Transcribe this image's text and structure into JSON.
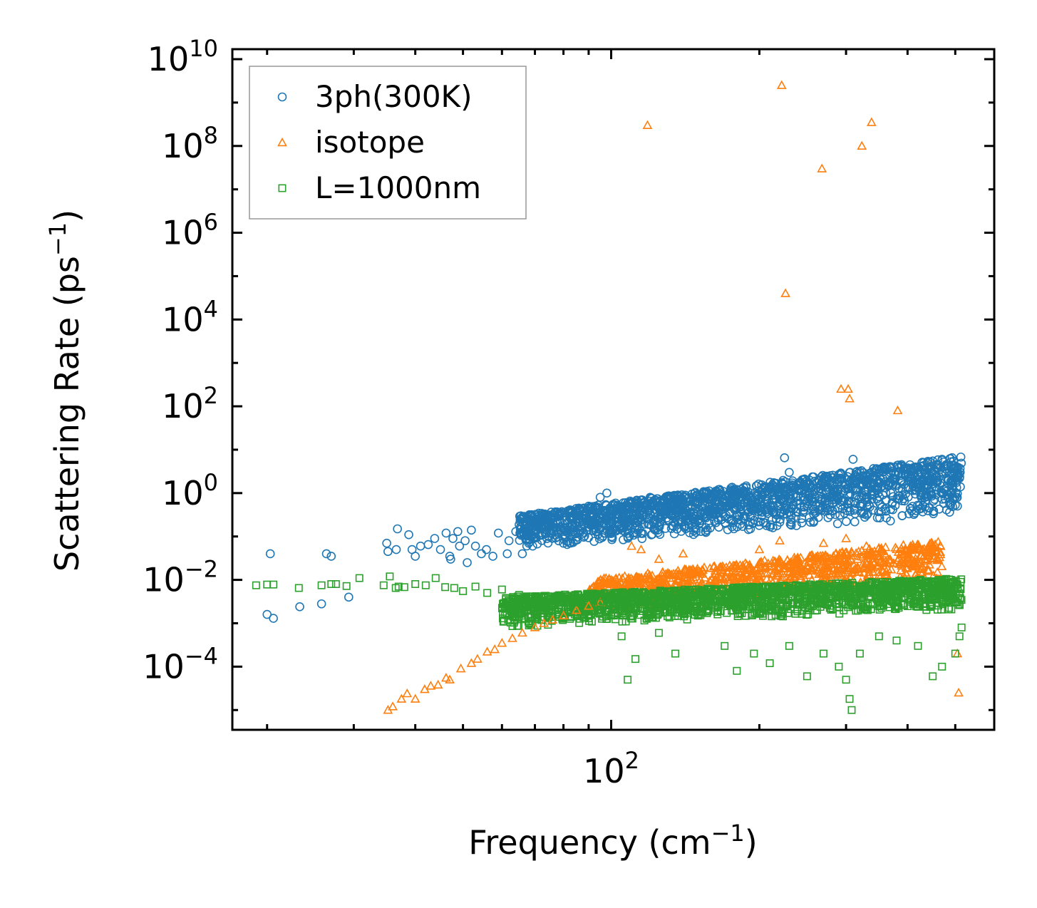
{
  "chart_data": {
    "type": "scatter",
    "title": "",
    "xlabel": "Frequency (cm",
    "xlabel_sup": "−1",
    "xlabel_end": ")",
    "ylabel": "Scattering Rate (ps",
    "ylabel_sup": "−1",
    "ylabel_end": ")",
    "xscale": "log",
    "yscale": "log",
    "xlim": [
      17,
      600
    ],
    "ylim": [
      3.5e-06,
      17000000000
    ],
    "x_ticks": [
      {
        "base": "10",
        "exp": "2",
        "value": 100
      }
    ],
    "y_ticks": [
      {
        "base": "10",
        "exp": "−4",
        "value": 0.0001
      },
      {
        "base": "10",
        "exp": "−2",
        "value": 0.01
      },
      {
        "base": "10",
        "exp": "0",
        "value": 1
      },
      {
        "base": "10",
        "exp": "2",
        "value": 100
      },
      {
        "base": "10",
        "exp": "4",
        "value": 10000
      },
      {
        "base": "10",
        "exp": "6",
        "value": 1000000
      },
      {
        "base": "10",
        "exp": "8",
        "value": 100000000
      },
      {
        "base": "10",
        "exp": "10",
        "value": 10000000000
      }
    ],
    "legend_position": "top-left",
    "series": [
      {
        "name": "3ph(300K)",
        "color": "#1f77b4",
        "marker": "circle",
        "points": [
          [
            20.3,
            0.04
          ],
          [
            20.0,
            0.0016
          ],
          [
            20.6,
            0.0013
          ],
          [
            23.3,
            0.0024
          ],
          [
            25.8,
            0.0028
          ],
          [
            26.4,
            0.04
          ],
          [
            27.0,
            0.035
          ],
          [
            29.3,
            0.004
          ],
          [
            35.0,
            0.07
          ],
          [
            35.2,
            0.045
          ],
          [
            36.8,
            0.15
          ],
          [
            36.6,
            0.05
          ],
          [
            38.8,
            0.11
          ],
          [
            39.4,
            0.05
          ],
          [
            40.0,
            0.035
          ],
          [
            41.0,
            0.06
          ],
          [
            42.5,
            0.065
          ],
          [
            43.8,
            0.09
          ],
          [
            45.0,
            0.05
          ],
          [
            46.2,
            0.12
          ],
          [
            47.0,
            0.035
          ],
          [
            47.2,
            0.03
          ],
          [
            47.7,
            0.09
          ],
          [
            48.8,
            0.13
          ],
          [
            49.2,
            0.06
          ],
          [
            50.5,
            0.08
          ],
          [
            51.0,
            0.025
          ],
          [
            52.0,
            0.14
          ],
          [
            53.0,
            0.06
          ],
          [
            54.5,
            0.04
          ],
          [
            55.8,
            0.05
          ],
          [
            57.5,
            0.035
          ],
          [
            59.0,
            0.12
          ],
          [
            61.5,
            0.04
          ],
          [
            62.0,
            0.08
          ],
          [
            64.0,
            0.13
          ],
          [
            66.0,
            0.04
          ],
          [
            68.0,
            0.07
          ],
          [
            70.0,
            0.1
          ],
          [
            72.0,
            0.15
          ],
          [
            75.0,
            0.12
          ],
          [
            78.0,
            0.2
          ],
          [
            80.0,
            0.07
          ],
          [
            83.0,
            0.3
          ],
          [
            86.0,
            0.45
          ],
          [
            90.0,
            0.5
          ],
          [
            95.0,
            0.8
          ],
          [
            98.0,
            1.0
          ],
          [
            105.0,
            0.45
          ],
          [
            112.0,
            0.6
          ],
          [
            120.0,
            0.8
          ],
          [
            130.0,
            0.5
          ],
          [
            140.0,
            0.35
          ],
          [
            150.0,
            0.55
          ],
          [
            160.0,
            0.7
          ],
          [
            175.0,
            0.6
          ],
          [
            185.0,
            0.8
          ],
          [
            200.0,
            0.4
          ],
          [
            215.0,
            0.9
          ],
          [
            225.0,
            6.5
          ],
          [
            230.0,
            3.0
          ],
          [
            245.0,
            2.0
          ],
          [
            260.0,
            1.2
          ],
          [
            280.0,
            0.8
          ],
          [
            300.0,
            1.5
          ],
          [
            310.0,
            6.0
          ],
          [
            330.0,
            1.6
          ],
          [
            350.0,
            3.5
          ],
          [
            370.0,
            1.0
          ],
          [
            390.0,
            0.3
          ],
          [
            410.0,
            2.5
          ],
          [
            430.0,
            3.5
          ],
          [
            450.0,
            5.5
          ],
          [
            470.0,
            6.0
          ],
          [
            490.0,
            4.0
          ],
          [
            510.0,
            2.2
          ]
        ]
      },
      {
        "name": "isotope",
        "color": "#ff7f0e",
        "marker": "triangle",
        "points": [
          [
            35.2,
            1e-05
          ],
          [
            36.0,
            1.2e-05
          ],
          [
            37.5,
            1.8e-05
          ],
          [
            38.5,
            2.4e-05
          ],
          [
            40.0,
            1.8e-05
          ],
          [
            41.8,
            3e-05
          ],
          [
            43.0,
            3.6e-05
          ],
          [
            44.5,
            3.8e-05
          ],
          [
            46.2,
            5.5e-05
          ],
          [
            47.0,
            5e-05
          ],
          [
            49.5,
            9e-05
          ],
          [
            52.0,
            0.00012
          ],
          [
            53.5,
            0.00015
          ],
          [
            56.0,
            0.00022
          ],
          [
            58.0,
            0.00025
          ],
          [
            60.0,
            0.00035
          ],
          [
            63.0,
            0.00045
          ],
          [
            66.0,
            0.0006
          ],
          [
            70.0,
            0.0008
          ],
          [
            73.0,
            0.001
          ],
          [
            76.0,
            0.0012
          ],
          [
            80.0,
            0.0015
          ],
          [
            85.0,
            0.002
          ],
          [
            90.0,
            0.0025
          ],
          [
            95.0,
            0.003
          ],
          [
            100.0,
            0.01
          ],
          [
            110.0,
            0.06
          ],
          [
            115.0,
            0.05
          ],
          [
            125.0,
            0.03
          ],
          [
            140.0,
            0.04
          ],
          [
            160.0,
            0.01
          ],
          [
            200.0,
            0.05
          ],
          [
            220.0,
            0.08
          ],
          [
            240.0,
            0.03
          ],
          [
            270.0,
            0.07
          ],
          [
            300.0,
            0.09
          ],
          [
            330.0,
            0.06
          ],
          [
            360.0,
            0.04
          ],
          [
            410.0,
            0.02
          ],
          [
            460.0,
            0.015
          ],
          [
            505.0,
            0.0002
          ],
          [
            508.0,
            2.5e-05
          ],
          [
            118.5,
            300000000
          ],
          [
            222.0,
            2500000000
          ],
          [
            226.0,
            40000
          ],
          [
            268.0,
            30000000
          ],
          [
            293.0,
            250
          ],
          [
            303.0,
            250
          ],
          [
            305.0,
            150
          ],
          [
            323.0,
            100000000
          ],
          [
            338.0,
            350000000
          ],
          [
            382.0,
            80
          ]
        ]
      },
      {
        "name": "L=1000nm",
        "color": "#2ca02c",
        "marker": "square",
        "points": [
          [
            19.0,
            0.0075
          ],
          [
            20.0,
            0.0078
          ],
          [
            20.6,
            0.0078
          ],
          [
            23.2,
            0.0065
          ],
          [
            25.8,
            0.0075
          ],
          [
            27.0,
            0.008
          ],
          [
            27.6,
            0.008
          ],
          [
            29.0,
            0.0072
          ],
          [
            30.8,
            0.011
          ],
          [
            34.5,
            0.0075
          ],
          [
            35.5,
            0.012
          ],
          [
            36.5,
            0.0065
          ],
          [
            37.0,
            0.007
          ],
          [
            38.0,
            0.0068
          ],
          [
            40.0,
            0.008
          ],
          [
            42.0,
            0.0075
          ],
          [
            44.0,
            0.011
          ],
          [
            46.0,
            0.0068
          ],
          [
            48.0,
            0.0065
          ],
          [
            50.0,
            0.0055
          ],
          [
            53.0,
            0.007
          ],
          [
            56.0,
            0.005
          ],
          [
            60.0,
            0.006
          ],
          [
            65.0,
            0.0045
          ],
          [
            70.0,
            0.004
          ],
          [
            78.0,
            0.0035
          ],
          [
            86.0,
            0.003
          ],
          [
            95.0,
            0.003
          ],
          [
            100.0,
            0.0015
          ],
          [
            105.0,
            0.0005
          ],
          [
            108.0,
            5e-05
          ],
          [
            112.0,
            0.00015
          ],
          [
            125.0,
            0.0006
          ],
          [
            135.0,
            0.0002
          ],
          [
            150.0,
            0.0015
          ],
          [
            170.0,
            0.0003
          ],
          [
            180.0,
            8e-05
          ],
          [
            195.0,
            0.0002
          ],
          [
            210.0,
            0.00012
          ],
          [
            230.0,
            0.0003
          ],
          [
            250.0,
            6e-05
          ],
          [
            270.0,
            0.0002
          ],
          [
            290.0,
            0.0001
          ],
          [
            300.0,
            5e-05
          ],
          [
            305.0,
            1.8e-05
          ],
          [
            308.0,
            1e-05
          ],
          [
            320.0,
            0.0002
          ],
          [
            350.0,
            0.0005
          ],
          [
            380.0,
            0.0004
          ],
          [
            420.0,
            0.0003
          ],
          [
            450.0,
            6e-05
          ],
          [
            470.0,
            0.0001
          ],
          [
            500.0,
            0.0002
          ],
          [
            510.0,
            0.0005
          ],
          [
            515.0,
            0.0008
          ]
        ]
      }
    ],
    "dense_bands": [
      {
        "series": 0,
        "x_from": 65,
        "x_to": 515,
        "y_lo": [
          0.05,
          0.3
        ],
        "y_hi": [
          0.3,
          7.0
        ],
        "count": 1800
      },
      {
        "series": 1,
        "x_from": 90,
        "x_to": 470,
        "y_lo": [
          0.002,
          0.01
        ],
        "y_hi": [
          0.01,
          0.08
        ],
        "count": 900
      },
      {
        "series": 2,
        "x_from": 60,
        "x_to": 515,
        "y_lo": [
          0.0008,
          0.002
        ],
        "y_hi": [
          0.004,
          0.011
        ],
        "count": 1800
      }
    ]
  }
}
